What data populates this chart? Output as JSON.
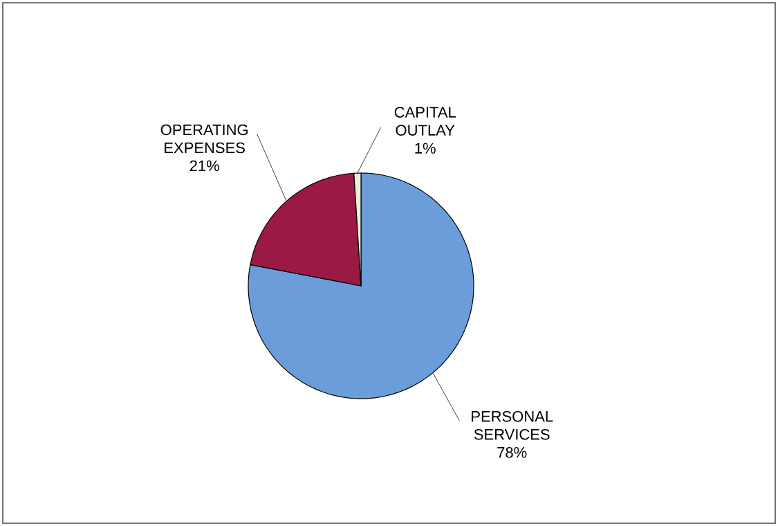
{
  "chart_data": {
    "type": "pie",
    "categories": [
      "PERSONAL SERVICES",
      "OPERATING EXPENSES",
      "CAPITAL OUTLAY"
    ],
    "values": [
      78,
      21,
      1
    ],
    "value_labels": [
      "78%",
      "21%",
      "1%"
    ],
    "colors": [
      "#6b9ddb",
      "#9b1a45",
      "#eeeedd"
    ],
    "legend": false
  }
}
